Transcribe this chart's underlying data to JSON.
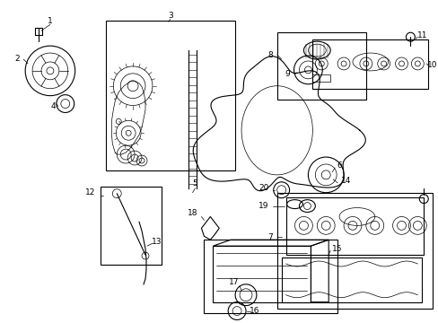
{
  "background_color": "#ffffff",
  "fig_width": 4.89,
  "fig_height": 3.6,
  "dpi": 100,
  "lc": "#000000",
  "lw": 0.8,
  "tlw": 0.5
}
